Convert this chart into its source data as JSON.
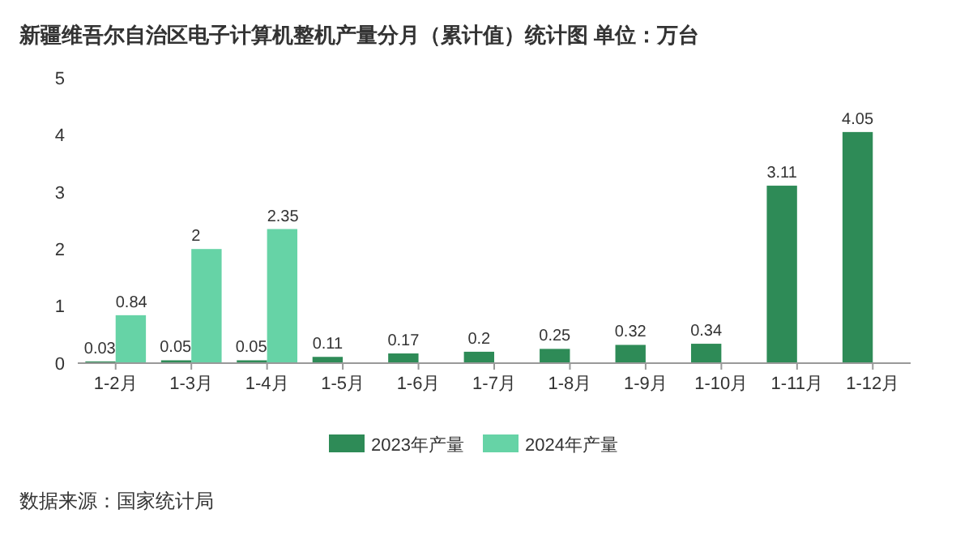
{
  "chart_data": {
    "type": "bar",
    "title": "新疆维吾尔自治区电子计算机整机产量分月（累计值）统计图 单位：万台",
    "categories": [
      "1-2月",
      "1-3月",
      "1-4月",
      "1-5月",
      "1-6月",
      "1-7月",
      "1-8月",
      "1-9月",
      "1-10月",
      "1-11月",
      "1-12月"
    ],
    "series": [
      {
        "name": "2023年产量",
        "color": "#2e8b57",
        "values": [
          0.03,
          0.05,
          0.05,
          0.11,
          0.17,
          0.2,
          0.25,
          0.32,
          0.34,
          3.11,
          4.05
        ]
      },
      {
        "name": "2024年产量",
        "color": "#66d3a6",
        "values": [
          0.84,
          2,
          2.35,
          null,
          null,
          null,
          null,
          null,
          null,
          null,
          null
        ]
      }
    ],
    "ylim": [
      0,
      5
    ],
    "yticks": [
      0,
      1,
      2,
      3,
      4,
      5
    ],
    "data_labels": true,
    "legend": "bottom",
    "annotations": [
      "数据来源：国家统计局"
    ]
  }
}
